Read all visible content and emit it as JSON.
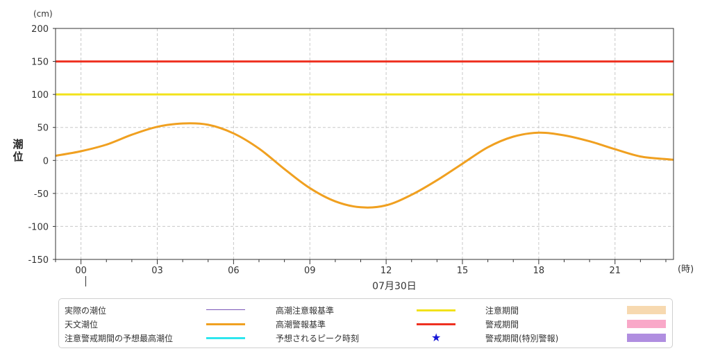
{
  "chart_data": {
    "type": "line",
    "title": "",
    "ylabel": "潮位",
    "yunit": "(cm)",
    "xunit": "(時)",
    "date_label": "07月30日",
    "ylim": [
      -150,
      200
    ],
    "yticks": [
      200,
      150,
      100,
      50,
      0,
      -50,
      -100,
      -150
    ],
    "xlim": [
      -1,
      23.3
    ],
    "xticks": [
      "00",
      "03",
      "06",
      "09",
      "12",
      "15",
      "18",
      "21"
    ],
    "xtick_hours": [
      0,
      3,
      6,
      9,
      12,
      15,
      18,
      21
    ],
    "grid": true,
    "series": [
      {
        "name": "天文潮位",
        "color": "#f0a020",
        "x": [
          -1,
          0,
          1,
          2,
          3,
          4,
          5,
          6,
          7,
          8,
          9,
          10,
          11,
          12,
          13,
          14,
          15,
          16,
          17,
          18,
          19,
          20,
          21,
          22,
          23,
          23.3
        ],
        "y": [
          7,
          14,
          24,
          39,
          51,
          56,
          54,
          41,
          18,
          -13,
          -42,
          -62,
          -71,
          -68,
          -52,
          -30,
          -5,
          20,
          36,
          42,
          38,
          29,
          17,
          6,
          2,
          1
        ]
      }
    ],
    "reference_lines": [
      {
        "name": "高潮警報基準",
        "value": 150,
        "color": "#ee3020"
      },
      {
        "name": "高潮注意報基準",
        "value": 100,
        "color": "#f2e21a"
      }
    ]
  },
  "legend": {
    "items": [
      {
        "label": "実際の潮位",
        "kind": "line",
        "color": "#7a55b8"
      },
      {
        "label": "天文潮位",
        "kind": "line",
        "color": "#f0a020"
      },
      {
        "label": "注意警戒期間の予想最高潮位",
        "kind": "line",
        "color": "#2ee6ee"
      },
      {
        "label": "高潮注意報基準",
        "kind": "line",
        "color": "#f2e21a"
      },
      {
        "label": "高潮警報基準",
        "kind": "line",
        "color": "#ee3020"
      },
      {
        "label": "予想されるピーク時刻",
        "kind": "star",
        "color": "#1515d6"
      },
      {
        "label": "注意期間",
        "kind": "box",
        "color": "#f7d9b0"
      },
      {
        "label": "警戒期間",
        "kind": "box",
        "color": "#f9a8c8"
      },
      {
        "label": "警戒期間(特別警報)",
        "kind": "box",
        "color": "#b08ee0"
      }
    ]
  }
}
